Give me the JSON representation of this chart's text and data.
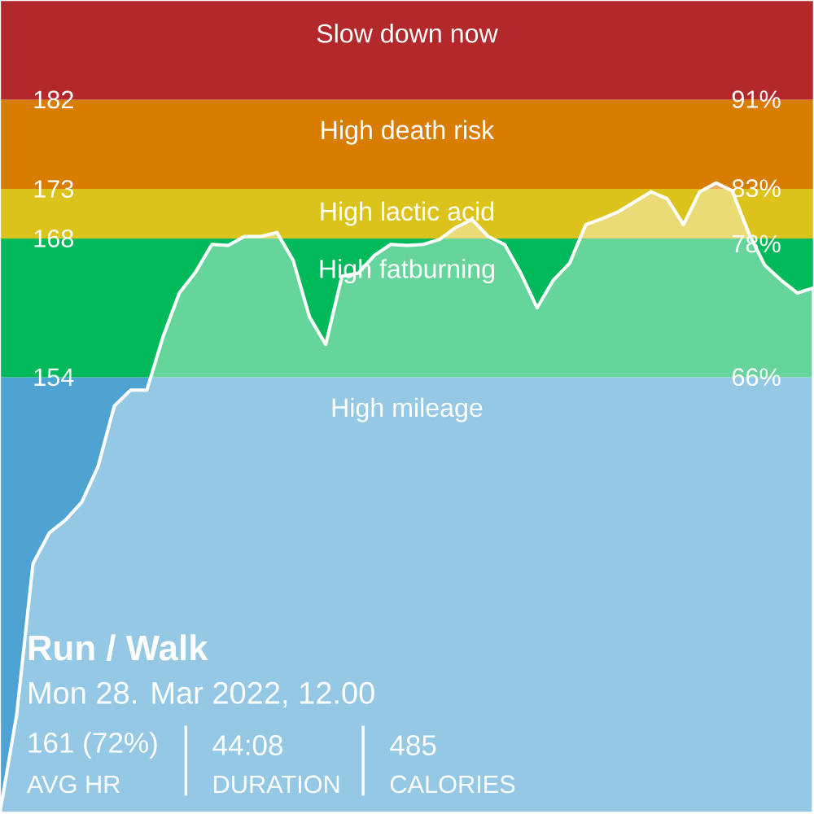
{
  "chart_data": {
    "type": "area",
    "categories": [
      null,
      null,
      null,
      null,
      null,
      null,
      null,
      null,
      null,
      null,
      null,
      null,
      null,
      null,
      null,
      null,
      null,
      null,
      null,
      null,
      null,
      null,
      null,
      null,
      null,
      null,
      null,
      null,
      null,
      null,
      null,
      null,
      null,
      null,
      null,
      null,
      null,
      null,
      null,
      null,
      null,
      null,
      null,
      null,
      null,
      null,
      null,
      null,
      null,
      null,
      null
    ],
    "series": [
      {
        "color": "#ffffff",
        "values": [
          110.4,
          120.0,
          135.2,
          138.3,
          139.6,
          141.4,
          145.0,
          151.1,
          152.7,
          152.7,
          158.1,
          162.5,
          164.6,
          167.4,
          167.3,
          168.2,
          168.2,
          168.6,
          165.8,
          160.1,
          157.3,
          164.2,
          164.5,
          166.3,
          167.4,
          167.3,
          167.4,
          167.9,
          169.1,
          169.9,
          168.2,
          167.4,
          164.5,
          161.0,
          163.8,
          165.5,
          169.4,
          170.0,
          170.7,
          171.7,
          172.7,
          172.0,
          169.4,
          172.7,
          173.6,
          172.8,
          168.6,
          165.3,
          163.8,
          162.5,
          163.0
        ]
      }
    ],
    "ylim": [
      110,
      192
    ],
    "yticks": [
      154,
      168,
      173,
      182
    ],
    "y2lim": [
      26.7,
      99.9
    ],
    "y2ticks": [
      {
        "value": 66,
        "label": "66%"
      },
      {
        "value": 78,
        "label": "78%"
      },
      {
        "value": 83,
        "label": "83%"
      },
      {
        "value": 91,
        "label": "91%"
      }
    ],
    "bands": [
      {
        "axis": "y",
        "from": 110,
        "to": 154,
        "label": "High mileage",
        "color": "#4ea3d3"
      },
      {
        "axis": "y",
        "from": 154,
        "to": 168,
        "label": "High fatburning",
        "color": "#00b95a"
      },
      {
        "axis": "y",
        "from": 168,
        "to": 173,
        "label": "High lactic acid",
        "color": "#dcc31c"
      },
      {
        "axis": "y",
        "from": 173,
        "to": 182,
        "label": "High death risk",
        "color": "#d97d00"
      },
      {
        "axis": "y",
        "from": 182,
        "to": 192,
        "label": "Slow down now",
        "color": "#b3282a"
      }
    ],
    "annotations": [
      "Run / Walk",
      "Mon 28. Mar 2022, 12.00",
      "161 (72%)",
      "AVG HR",
      "44:08",
      "DURATION",
      "485",
      "CALORIES"
    ]
  }
}
